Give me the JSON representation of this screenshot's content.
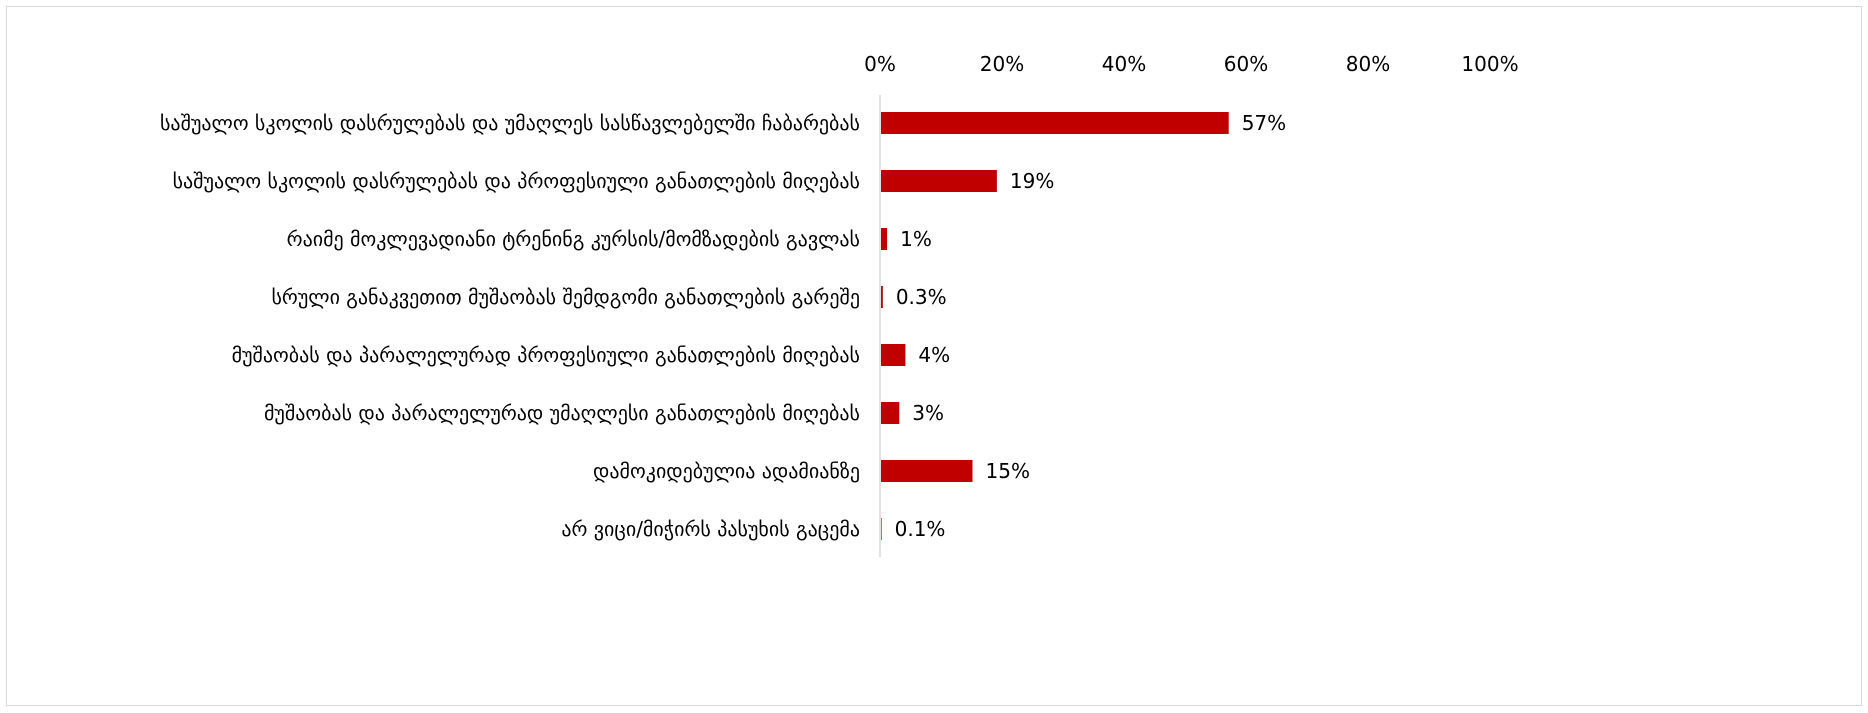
{
  "chart_data": {
    "type": "bar",
    "orientation": "horizontal",
    "categories": [
      "საშუალო სკოლის დასრულებას და უმაღლეს სასწავლებელში ჩაბარებას",
      "საშუალო სკოლის დასრულებას და პროფესიული განათლების მიღებას",
      "რაიმე მოკლევადიანი ტრენინგ კურსის/მომზადების გავლას",
      "სრული განაკვეთით მუშაობას შემდგომი განათლების გარეშე",
      "მუშაობას და პარალელურად პროფესიული განათლების მიღებას",
      "მუშაობას და პარალელურად უმაღლესი განათლების მიღებას",
      "დამოკიდებულია ადამიანზე",
      "არ ვიცი/მიჭირს პასუხის გაცემა"
    ],
    "values": [
      57,
      19,
      1,
      0.3,
      4,
      3,
      15,
      0.1
    ],
    "data_labels": [
      "57%",
      "19%",
      "1%",
      "0.3%",
      "4%",
      "3%",
      "15%",
      "0.1%"
    ],
    "xlim": [
      0,
      100
    ],
    "x_ticks": [
      0,
      20,
      40,
      60,
      80,
      100
    ],
    "x_tick_labels": [
      "0%",
      "20%",
      "40%",
      "60%",
      "80%",
      "100%"
    ],
    "x_axis_position": "top",
    "grid": false,
    "legend": "none",
    "bar_color": "#c00000",
    "axis_color": "#d9d9d9"
  }
}
